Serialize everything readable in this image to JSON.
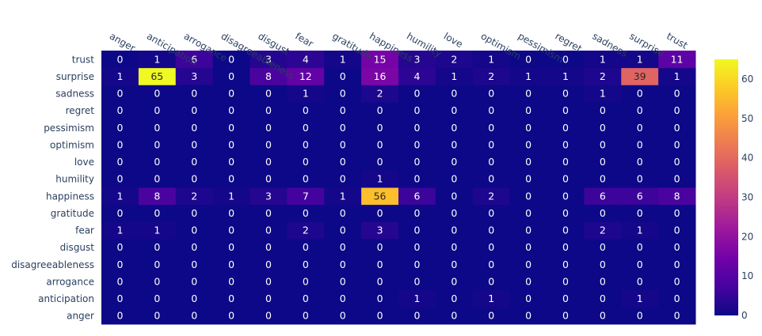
{
  "chart_data": {
    "type": "heatmap",
    "title": "",
    "xlabel": "",
    "ylabel": "",
    "x_categories": [
      "anger",
      "anticipation",
      "arrogance",
      "disagreeableness",
      "disgust",
      "fear",
      "gratitude",
      "happiness",
      "humility",
      "love",
      "optimism",
      "pessimism",
      "regret",
      "sadness",
      "surprise",
      "trust"
    ],
    "y_categories": [
      "anger",
      "anticipation",
      "arrogance",
      "disagreeableness",
      "disgust",
      "fear",
      "gratitude",
      "happiness",
      "humility",
      "love",
      "optimism",
      "pessimism",
      "regret",
      "sadness",
      "surprise",
      "trust"
    ],
    "z": [
      [
        0,
        0,
        0,
        0,
        0,
        0,
        0,
        0,
        0,
        0,
        0,
        0,
        0,
        0,
        0,
        0
      ],
      [
        0,
        0,
        0,
        0,
        0,
        0,
        0,
        0,
        1,
        0,
        1,
        0,
        0,
        0,
        1,
        0
      ],
      [
        0,
        0,
        0,
        0,
        0,
        0,
        0,
        0,
        0,
        0,
        0,
        0,
        0,
        0,
        0,
        0
      ],
      [
        0,
        0,
        0,
        0,
        0,
        0,
        0,
        0,
        0,
        0,
        0,
        0,
        0,
        0,
        0,
        0
      ],
      [
        0,
        0,
        0,
        0,
        0,
        0,
        0,
        0,
        0,
        0,
        0,
        0,
        0,
        0,
        0,
        0
      ],
      [
        1,
        1,
        0,
        0,
        0,
        2,
        0,
        3,
        0,
        0,
        0,
        0,
        0,
        2,
        1,
        0
      ],
      [
        0,
        0,
        0,
        0,
        0,
        0,
        0,
        0,
        0,
        0,
        0,
        0,
        0,
        0,
        0,
        0
      ],
      [
        1,
        8,
        2,
        1,
        3,
        7,
        1,
        56,
        6,
        0,
        2,
        0,
        0,
        6,
        6,
        8
      ],
      [
        0,
        0,
        0,
        0,
        0,
        0,
        0,
        1,
        0,
        0,
        0,
        0,
        0,
        0,
        0,
        0
      ],
      [
        0,
        0,
        0,
        0,
        0,
        0,
        0,
        0,
        0,
        0,
        0,
        0,
        0,
        0,
        0,
        0
      ],
      [
        0,
        0,
        0,
        0,
        0,
        0,
        0,
        0,
        0,
        0,
        0,
        0,
        0,
        0,
        0,
        0
      ],
      [
        0,
        0,
        0,
        0,
        0,
        0,
        0,
        0,
        0,
        0,
        0,
        0,
        0,
        0,
        0,
        0
      ],
      [
        0,
        0,
        0,
        0,
        0,
        0,
        0,
        0,
        0,
        0,
        0,
        0,
        0,
        0,
        0,
        0
      ],
      [
        0,
        0,
        0,
        0,
        0,
        1,
        0,
        2,
        0,
        0,
        0,
        0,
        0,
        1,
        0,
        0
      ],
      [
        1,
        65,
        3,
        0,
        8,
        12,
        0,
        16,
        4,
        1,
        2,
        1,
        1,
        2,
        39,
        1
      ],
      [
        0,
        1,
        6,
        0,
        3,
        4,
        1,
        15,
        3,
        2,
        1,
        0,
        0,
        1,
        1,
        11
      ]
    ],
    "color_range": [
      0,
      65
    ],
    "colorbar_ticks": [
      0,
      10,
      20,
      30,
      40,
      50,
      60
    ],
    "colorscale": "plasma",
    "grid": false
  }
}
